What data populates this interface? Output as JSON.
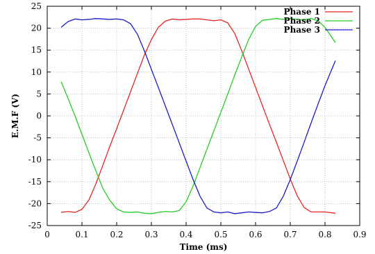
{
  "chart_data": {
    "type": "line",
    "title": "",
    "xlabel": "Time (ms)",
    "ylabel": "E.M.F (V)",
    "xlim": [
      0,
      0.9
    ],
    "ylim": [
      -25,
      25
    ],
    "xticks": [
      "0",
      "0.1",
      "0.2",
      "0.3",
      "0.4",
      "0.5",
      "0.6",
      "0.7",
      "0.8",
      "0.9"
    ],
    "yticks": [
      "-25",
      "-20",
      "-15",
      "-10",
      "-5",
      "0",
      "5",
      "10",
      "15",
      "20",
      "25"
    ],
    "grid": true,
    "legend_position": "top-right",
    "x": [
      0.04,
      0.06,
      0.08,
      0.1,
      0.12,
      0.14,
      0.16,
      0.18,
      0.2,
      0.22,
      0.24,
      0.26,
      0.28,
      0.3,
      0.32,
      0.34,
      0.36,
      0.38,
      0.4,
      0.42,
      0.44,
      0.46,
      0.48,
      0.5,
      0.52,
      0.54,
      0.56,
      0.58,
      0.6,
      0.62,
      0.64,
      0.66,
      0.68,
      0.7,
      0.72,
      0.74,
      0.76,
      0.78,
      0.8,
      0.83
    ],
    "series": [
      {
        "name": "Phase 1",
        "color": "#e8231f",
        "values": [
          -22.0,
          -21.8,
          -22.0,
          -21.3,
          -19.2,
          -15.5,
          -11.3,
          -7.0,
          -2.9,
          1.3,
          5.5,
          9.7,
          13.9,
          17.4,
          20.2,
          21.6,
          22.1,
          21.9,
          22.0,
          22.1,
          22.1,
          21.9,
          21.7,
          21.9,
          21.2,
          18.8,
          14.9,
          10.7,
          6.5,
          2.3,
          -1.9,
          -6.0,
          -10.2,
          -14.4,
          -18.2,
          -20.9,
          -21.9,
          -21.9,
          -21.9,
          -22.2
        ]
      },
      {
        "name": "Phase 2",
        "color": "#22cc22",
        "values": [
          7.8,
          4.0,
          0.0,
          -4.2,
          -8.4,
          -12.5,
          -16.5,
          -19.2,
          -21.2,
          -21.9,
          -22.0,
          -21.9,
          -22.2,
          -22.3,
          -22.0,
          -21.8,
          -21.9,
          -21.6,
          -19.6,
          -16.0,
          -11.8,
          -7.6,
          -3.4,
          0.8,
          5.0,
          9.3,
          13.4,
          17.4,
          20.4,
          21.8,
          22.0,
          22.2,
          22.0,
          22.2,
          22.0,
          21.9,
          22.2,
          21.7,
          20.2,
          16.7
        ]
      },
      {
        "name": "Phase 3",
        "color": "#1a1acc",
        "values": [
          20.2,
          21.5,
          22.1,
          21.9,
          22.0,
          22.2,
          22.1,
          22.0,
          22.1,
          21.9,
          21.0,
          18.6,
          14.8,
          10.6,
          6.5,
          2.3,
          -1.9,
          -6.1,
          -10.3,
          -14.5,
          -18.3,
          -21.0,
          -21.9,
          -22.1,
          -21.9,
          -22.3,
          -22.1,
          -21.9,
          -22.0,
          -22.1,
          -21.8,
          -21.0,
          -18.3,
          -14.5,
          -10.3,
          -6.0,
          -1.6,
          2.7,
          6.9,
          12.6
        ]
      }
    ]
  }
}
